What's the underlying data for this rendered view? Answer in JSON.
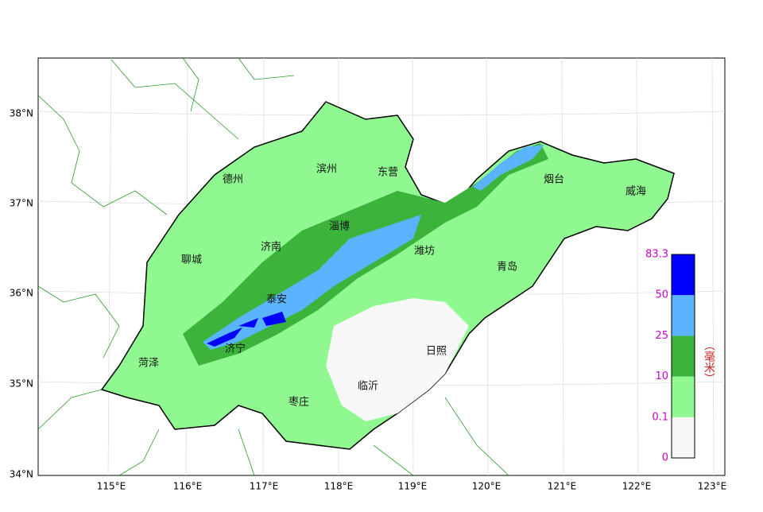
{
  "map": {
    "cities": [
      "德州",
      "滨州",
      "东营",
      "烟台",
      "威海",
      "淄博",
      "济南",
      "聊城",
      "潍坊",
      "青岛",
      "泰安",
      "济宁",
      "菏泽",
      "日照",
      "临沂",
      "枣庄"
    ],
    "lon_labels": [
      "115°E",
      "116°E",
      "117°E",
      "118°E",
      "119°E",
      "120°E",
      "121°E",
      "122°E",
      "123°E"
    ],
    "lat_labels": [
      "38°N",
      "37°N",
      "36°N",
      "35°N",
      "34°N"
    ]
  },
  "legend": {
    "levels": [
      0,
      0.1,
      10,
      25,
      50,
      83.3
    ],
    "colors": [
      "#f7f7f7",
      "#90f890",
      "#3cb43c",
      "#5ab4ff",
      "#0000ff"
    ],
    "unit": "（毫米）"
  }
}
